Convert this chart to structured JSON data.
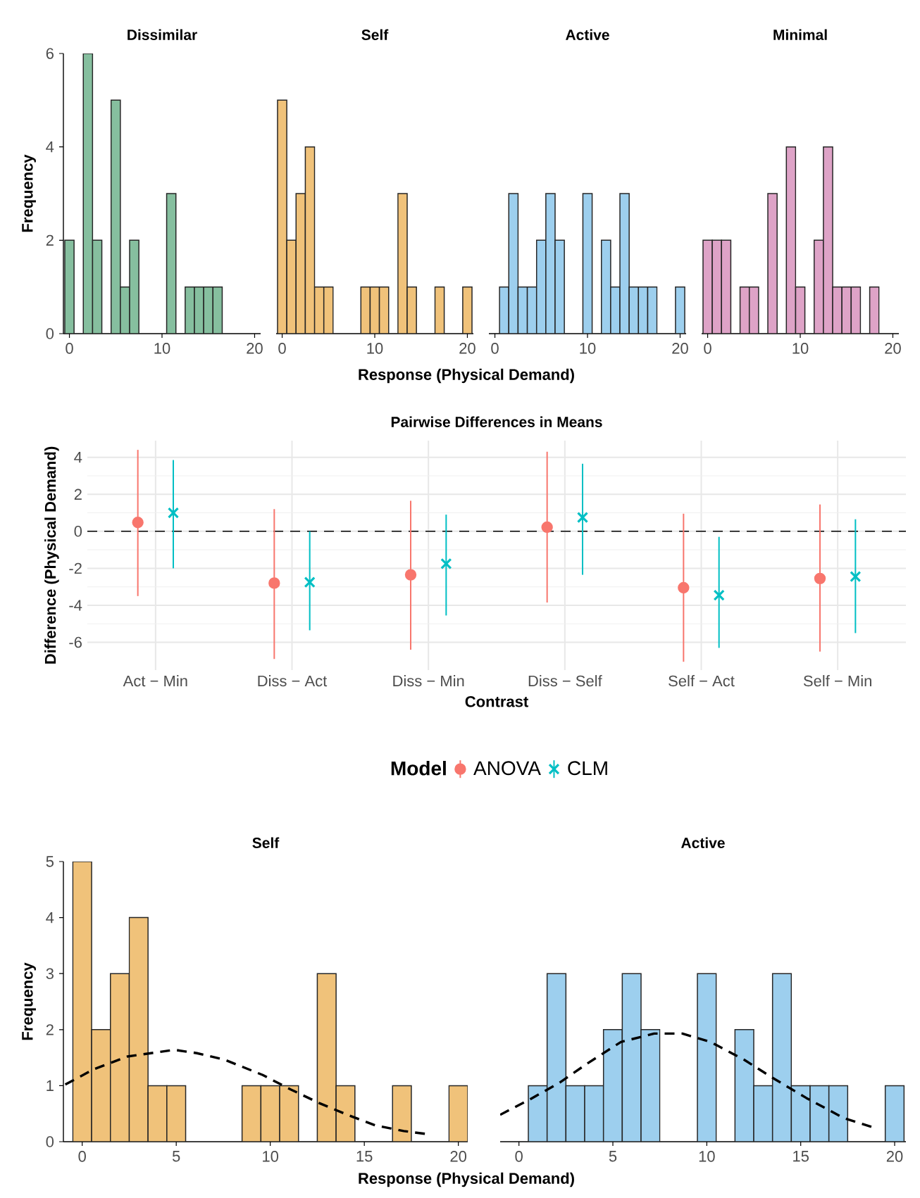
{
  "chart_data": [
    {
      "type": "histogram",
      "title": "Dissimilar",
      "ylabel": "Frequency",
      "bins": [
        -0.5,
        0.5,
        1.5,
        2.5,
        3.5,
        4.5,
        5.5,
        6.5,
        7.5,
        8.5,
        9.5,
        10.5,
        11.5,
        12.5,
        13.5,
        14.5,
        15.5,
        16.5,
        17.5,
        18.5,
        19.5,
        20.5
      ],
      "values": [
        2,
        0,
        6,
        2,
        0,
        5,
        1,
        2,
        0,
        0,
        0,
        3,
        0,
        1,
        1,
        1,
        1,
        0,
        0,
        0,
        0
      ],
      "color": "#86bf9f",
      "xlim": [
        -0.65,
        20.65
      ],
      "ylim": [
        0,
        6
      ],
      "xticks": [
        0,
        10,
        20
      ],
      "yticks": [
        0,
        2,
        4,
        6
      ]
    },
    {
      "type": "histogram",
      "title": "Self",
      "xlabel": "Response (Physical Demand)",
      "bins": [
        -0.5,
        0.5,
        1.5,
        2.5,
        3.5,
        4.5,
        5.5,
        6.5,
        7.5,
        8.5,
        9.5,
        10.5,
        11.5,
        12.5,
        13.5,
        14.5,
        15.5,
        16.5,
        17.5,
        18.5,
        19.5,
        20.5
      ],
      "values": [
        5,
        2,
        3,
        4,
        1,
        1,
        0,
        0,
        0,
        1,
        1,
        1,
        0,
        3,
        1,
        0,
        0,
        1,
        0,
        0,
        1
      ],
      "color": "#f0c27a",
      "xlim": [
        -0.65,
        20.65
      ],
      "ylim": [
        0,
        6
      ],
      "xticks": [
        0,
        10,
        20
      ],
      "yticks": [
        0,
        2,
        4,
        6
      ],
      "tick_labels": "x"
    },
    {
      "type": "histogram",
      "title": "Active",
      "bins": [
        -0.5,
        0.5,
        1.5,
        2.5,
        3.5,
        4.5,
        5.5,
        6.5,
        7.5,
        8.5,
        9.5,
        10.5,
        11.5,
        12.5,
        13.5,
        14.5,
        15.5,
        16.5,
        17.5,
        18.5,
        19.5,
        20.5
      ],
      "values": [
        0,
        1,
        3,
        1,
        1,
        2,
        3,
        2,
        0,
        0,
        3,
        0,
        2,
        1,
        3,
        1,
        1,
        1,
        0,
        0,
        1
      ],
      "color": "#9dcfee",
      "xlim": [
        -0.65,
        20.65
      ],
      "ylim": [
        0,
        6
      ],
      "xticks": [
        0,
        10,
        20
      ],
      "yticks": [
        0,
        2,
        4,
        6
      ],
      "tick_labels": "x"
    },
    {
      "type": "histogram",
      "title": "Minimal",
      "bins": [
        -0.5,
        0.5,
        1.5,
        2.5,
        3.5,
        4.5,
        5.5,
        6.5,
        7.5,
        8.5,
        9.5,
        10.5,
        11.5,
        12.5,
        13.5,
        14.5,
        15.5,
        16.5,
        17.5,
        18.5,
        19.5,
        20.5
      ],
      "values": [
        2,
        2,
        2,
        0,
        1,
        1,
        0,
        3,
        0,
        4,
        1,
        0,
        2,
        4,
        1,
        1,
        1,
        0,
        1,
        0,
        0
      ],
      "color": "#dea3c7",
      "xlim": [
        -0.65,
        20.65
      ],
      "ylim": [
        0,
        6
      ],
      "xticks": [
        0,
        10,
        20
      ],
      "yticks": [
        0,
        2,
        4,
        6
      ],
      "tick_labels": "x"
    },
    {
      "type": "scatter",
      "title": "Pairwise Differences in Means",
      "xlabel": "Contrast",
      "ylabel": "Difference (Physical Demand)",
      "legend_title": "Model",
      "legend": "bottom",
      "grid": true,
      "categories": [
        "Act − Min",
        "Diss − Act",
        "Diss − Min",
        "Diss − Self",
        "Self − Act",
        "Self − Min"
      ],
      "series": [
        {
          "name": "ANOVA",
          "color": "#f8766d",
          "marker": "circle",
          "values": [
            0.48,
            -2.8,
            -2.35,
            0.22,
            -3.05,
            -2.55
          ],
          "errors": [
            [
              -3.5,
              4.4
            ],
            [
              -6.9,
              1.2
            ],
            [
              -6.4,
              1.65
            ],
            [
              -3.85,
              4.3
            ],
            [
              -7.05,
              0.95
            ],
            [
              -6.5,
              1.45
            ]
          ]
        },
        {
          "name": "CLM",
          "color": "#00bfc4",
          "marker": "cross",
          "values": [
            1.0,
            -2.75,
            -1.75,
            0.75,
            -3.45,
            -2.45
          ],
          "errors": [
            [
              -2.0,
              3.85
            ],
            [
              -5.35,
              0.0
            ],
            [
              -4.55,
              0.9
            ],
            [
              -2.35,
              3.65
            ],
            [
              -6.3,
              -0.3
            ],
            [
              -5.5,
              0.65
            ]
          ]
        }
      ],
      "ylim": [
        -7.5,
        4.9
      ],
      "yticks": [
        -6,
        -4,
        -2,
        0,
        2,
        4
      ],
      "ref_lines": [
        {
          "axis": "y",
          "value": 0,
          "color": "#000000",
          "line_style": "dashed"
        }
      ]
    },
    {
      "type": "histogram",
      "title": "Self",
      "xlabel": "Response (Physical Demand)",
      "ylabel": "Frequency",
      "xlim": [
        -1,
        20.5
      ],
      "ylim": [
        0,
        5
      ],
      "xticks": [
        0,
        5,
        10,
        15,
        20
      ],
      "yticks": [
        0,
        1,
        2,
        3,
        4,
        5
      ],
      "series": [
        {
          "type": "histogram",
          "color": "#f0c27a",
          "bins": [
            -0.5,
            0.5,
            1.5,
            2.5,
            3.5,
            4.5,
            5.5,
            6.5,
            7.5,
            8.5,
            9.5,
            10.5,
            11.5,
            12.5,
            13.5,
            14.5,
            15.5,
            16.5,
            17.5,
            18.5,
            19.5,
            20.5
          ],
          "values": [
            5,
            2,
            3,
            4,
            1,
            1,
            0,
            0,
            0,
            1,
            1,
            1,
            0,
            3,
            1,
            0,
            0,
            1,
            0,
            0,
            1
          ]
        },
        {
          "type": "line",
          "color": "#000000",
          "line_style": "dashed",
          "x": [
            -0.9,
            0.6,
            2.4,
            4.9,
            6.1,
            7.6,
            9.6,
            11.1,
            12.6,
            14.1,
            15.6,
            17.1,
            18.25
          ],
          "values": [
            1.02,
            1.29,
            1.52,
            1.64,
            1.58,
            1.46,
            1.19,
            0.93,
            0.69,
            0.48,
            0.29,
            0.19,
            0.14
          ]
        }
      ]
    },
    {
      "type": "histogram",
      "title": "Active",
      "xlim": [
        -1,
        20.6
      ],
      "ylim": [
        0,
        5
      ],
      "xticks": [
        0,
        5,
        10,
        15,
        20
      ],
      "yticks": [
        0,
        1,
        2,
        3,
        4,
        5
      ],
      "tick_labels": "x",
      "series": [
        {
          "type": "histogram",
          "color": "#9dcfee",
          "bins": [
            -0.5,
            0.5,
            1.5,
            2.5,
            3.5,
            4.5,
            5.5,
            6.5,
            7.5,
            8.5,
            9.5,
            10.5,
            11.5,
            12.5,
            13.5,
            14.5,
            15.5,
            16.5,
            17.5,
            18.5,
            19.5,
            20.5
          ],
          "values": [
            0,
            1,
            3,
            1,
            1,
            2,
            3,
            2,
            0,
            0,
            3,
            0,
            2,
            1,
            3,
            1,
            1,
            1,
            0,
            0,
            1
          ]
        },
        {
          "type": "line",
          "color": "#000000",
          "line_style": "dashed",
          "x": [
            -1.0,
            0.5,
            2.15,
            3.66,
            5.43,
            7.2,
            8.7,
            10.2,
            12.0,
            13.5,
            15.3,
            17.3,
            18.9
          ],
          "values": [
            0.48,
            0.74,
            1.05,
            1.4,
            1.78,
            1.93,
            1.93,
            1.78,
            1.46,
            1.14,
            0.78,
            0.42,
            0.25
          ]
        }
      ]
    }
  ]
}
